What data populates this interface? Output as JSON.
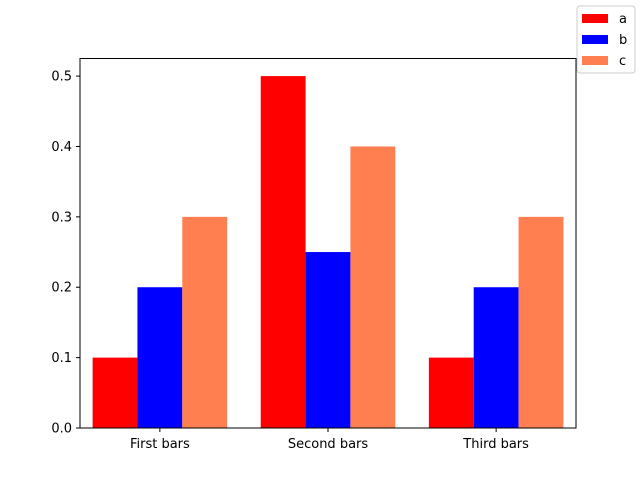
{
  "chart_data": {
    "type": "bar",
    "categories": [
      "First bars",
      "Second bars",
      "Third bars"
    ],
    "series": [
      {
        "name": "a",
        "values": [
          0.1,
          0.5,
          0.1
        ],
        "color": "#ff0000"
      },
      {
        "name": "b",
        "values": [
          0.2,
          0.25,
          0.2
        ],
        "color": "#0000ff"
      },
      {
        "name": "c",
        "values": [
          0.3,
          0.4,
          0.3
        ],
        "color": "#ff7f50"
      }
    ],
    "yticks": [
      "0.0",
      "0.1",
      "0.2",
      "0.3",
      "0.4",
      "0.5"
    ],
    "ylim": [
      0,
      0.525
    ],
    "grid": false,
    "legend_position": "top-right"
  }
}
